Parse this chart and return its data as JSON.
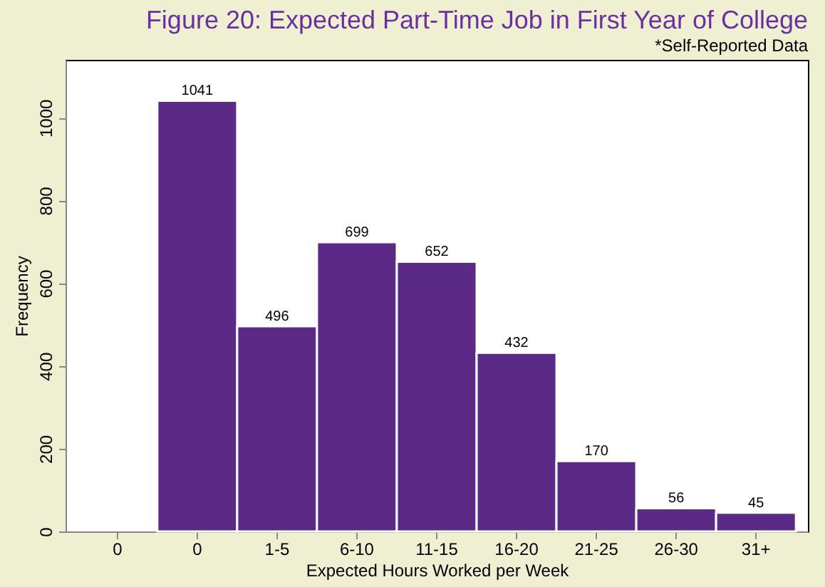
{
  "chart_data": {
    "type": "bar",
    "title": "Figure 20: Expected Part-Time Job in First Year of College",
    "subtitle": "*Self-Reported Data",
    "categories": [
      "0",
      "0",
      "1-5",
      "6-10",
      "11-15",
      "16-20",
      "21-25",
      "26-30",
      "31+"
    ],
    "values": [
      null,
      1041,
      496,
      699,
      652,
      432,
      170,
      56,
      45
    ],
    "color": "#5b2a86",
    "xlabel": "Expected Hours Worked per Week",
    "ylabel": "Frequency",
    "ylim": [
      0,
      1140
    ],
    "yticks": [
      0,
      200,
      400,
      600,
      800,
      1000
    ],
    "grid": false,
    "data_labels": true
  }
}
